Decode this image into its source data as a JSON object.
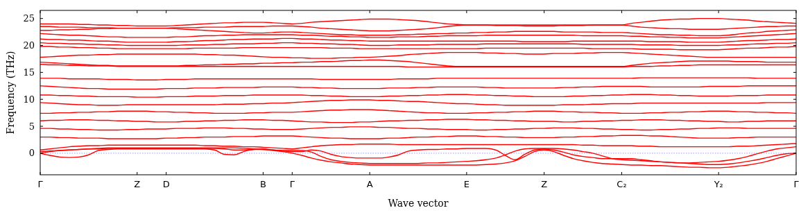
{
  "chart_data": {
    "type": "line",
    "xlabel": "Wave vector",
    "ylabel": "Frequency (THz)",
    "line_style": "solid",
    "categories": [
      "Γ",
      null,
      null,
      null,
      null,
      null,
      null,
      null,
      null,
      null,
      "Z",
      null,
      null,
      "D",
      null,
      null,
      null,
      null,
      null,
      null,
      null,
      null,
      null,
      "B",
      null,
      null,
      "Γ",
      null,
      null,
      null,
      null,
      null,
      null,
      null,
      "A",
      null,
      null,
      null,
      null,
      null,
      null,
      null,
      null,
      null,
      "E",
      null,
      null,
      null,
      null,
      null,
      null,
      null,
      "Z",
      null,
      null,
      null,
      null,
      null,
      null,
      null,
      "C₂",
      null,
      null,
      null,
      null,
      null,
      null,
      null,
      null,
      null,
      "Y₂",
      null,
      null,
      null,
      null,
      null,
      null,
      null,
      "Γ"
    ],
    "ylim": [
      -4,
      26.5
    ],
    "yticks": [
      0,
      5,
      10,
      15,
      20,
      25
    ],
    "ref_lines": [
      {
        "axis": "y",
        "value": 0,
        "color": "#8080ff",
        "line_style": "dotted"
      }
    ],
    "series": [
      {
        "color": "#ff0000",
        "values": [
          0,
          -0.4,
          -0.7,
          -0.8,
          -0.7,
          -0.3,
          0.5,
          0.7,
          0.8,
          0.8,
          0.8,
          0.8,
          0.8,
          0.8,
          0.8,
          0.8,
          0.8,
          0.8,
          0.6,
          -0.2,
          -0.3,
          0.3,
          0.7,
          0.7,
          0.5,
          0.3,
          0,
          -0.4,
          -0.9,
          -1.3,
          -1.6,
          -1.8,
          -2.0,
          -2.1,
          -2.2,
          -2.2,
          -2.2,
          -2.2,
          -2.2,
          -2.2,
          -2.2,
          -2.2,
          -2.2,
          -2.2,
          -2.2,
          -2.2,
          -2.1,
          -2.0,
          -1.8,
          -1.4,
          -0.6,
          0.3,
          0.6,
          0.3,
          -0.4,
          -1.0,
          -1.4,
          -1.7,
          -1.9,
          -2.0,
          -2.1,
          -2.2,
          -2.2,
          -2.3,
          -2.3,
          -2.4,
          -2.5,
          -2.6,
          -2.6,
          -2.7,
          -2.7,
          -2.6,
          -2.4,
          -2.2,
          -1.9,
          -1.5,
          -1.0,
          -0.5,
          0
        ]
      },
      {
        "color": "#ff0000",
        "values": [
          0,
          0.3,
          0.5,
          0.6,
          0.7,
          0.8,
          0.8,
          0.9,
          0.9,
          0.9,
          0.9,
          0.9,
          0.9,
          0.9,
          0.9,
          0.9,
          0.9,
          0.9,
          0.9,
          0.8,
          0.6,
          0.6,
          0.7,
          0.8,
          0.6,
          0.4,
          0.3,
          0.3,
          0.6,
          0.4,
          -0.2,
          -0.6,
          -0.8,
          -0.9,
          -0.9,
          -0.9,
          -0.7,
          -0.3,
          0.4,
          0.6,
          0.7,
          0.7,
          0.8,
          0.8,
          0.9,
          0.9,
          0.9,
          0.6,
          -0.4,
          -1.2,
          -0.2,
          0.6,
          0.8,
          0.6,
          0.2,
          -0.3,
          -0.6,
          -0.8,
          -1.0,
          -1.0,
          -1.0,
          -1.0,
          -1.2,
          -1.4,
          -1.6,
          -1.7,
          -1.8,
          -1.8,
          -1.7,
          -1.6,
          -1.5,
          -1.3,
          -1.0,
          -0.6,
          -0.1,
          0.4,
          0.8,
          1.0,
          1.2
        ]
      },
      {
        "color": "#ff0000",
        "values": [
          0.3,
          0.4,
          0.5,
          0.6,
          0.7,
          0.8,
          0.9,
          1.0,
          1.0,
          1.0,
          1.0,
          1.0,
          1.0,
          1.0,
          1.0,
          1.0,
          1.0,
          1.0,
          1.0,
          1.0,
          1.0,
          0.9,
          0.8,
          0.7,
          0.6,
          0.5,
          0.5,
          0.5,
          0.2,
          -0.6,
          -1.2,
          -1.5,
          -1.7,
          -1.8,
          -1.9,
          -1.9,
          -1.9,
          -1.9,
          -1.9,
          -1.9,
          -1.8,
          -1.8,
          -1.7,
          -1.6,
          -1.5,
          -1.4,
          -1.2,
          -0.9,
          -0.3,
          0.4,
          0.8,
          0.9,
          0.9,
          0.9,
          0.8,
          0.6,
          0.3,
          0.0,
          -0.5,
          -1.0,
          -1.2,
          -1.3,
          -1.4,
          -1.5,
          -1.6,
          -1.7,
          -1.8,
          -1.9,
          -2.0,
          -2.1,
          -2.1,
          -2.0,
          -1.8,
          -1.5,
          -1.2,
          -0.8,
          -0.4,
          -0.1,
          0
        ]
      },
      {
        "color": "#ff0000",
        "values": [
          0.6,
          0.8,
          1.0,
          1.2,
          1.3,
          1.4,
          1.4,
          1.5,
          1.5,
          1.5,
          1.5,
          1.5,
          1.5,
          1.5,
          1.5,
          1.5,
          1.5,
          1.4,
          1.4,
          1.3,
          1.3,
          1.2,
          1.2,
          1.1,
          1.0,
          0.9,
          0.8,
          1.0,
          1.2,
          1.4,
          1.5,
          1.6,
          1.6,
          1.7,
          1.7,
          1.7,
          1.7,
          1.6,
          1.6,
          1.6,
          1.6,
          1.6,
          1.6,
          1.6,
          1.6,
          1.6,
          1.6,
          1.6,
          1.6,
          1.6,
          1.6,
          1.6,
          1.6,
          1.6,
          1.6,
          1.6,
          1.5,
          1.5,
          1.4,
          1.4,
          1.4,
          1.4,
          1.3,
          1.3,
          1.2,
          1.2,
          1.2,
          1.2,
          1.2,
          1.2,
          1.2,
          1.2,
          1.3,
          1.3,
          1.4,
          1.5,
          1.6,
          1.7,
          1.8
        ]
      },
      {
        "color": "#ff0000",
        "values": [
          3.0,
          3.0,
          2.9,
          2.9,
          2.8,
          2.8,
          2.8,
          2.7,
          2.7,
          2.7,
          2.7,
          2.7,
          2.7,
          2.8,
          2.8,
          2.9,
          2.9,
          3.0,
          3.0,
          3.0,
          3.1,
          3.1,
          3.1,
          3.2,
          3.2,
          3.2,
          3.2,
          3.1,
          3.0,
          2.9,
          2.8,
          2.8,
          2.7,
          2.7,
          2.7,
          2.7,
          2.8,
          2.8,
          2.9,
          3.0,
          3.0,
          3.1,
          3.1,
          3.2,
          3.2,
          3.2,
          3.1,
          3.1,
          3.0,
          3.0,
          2.9,
          2.9,
          2.9,
          2.9,
          3.0,
          3.0,
          3.1,
          3.1,
          3.2,
          3.2,
          3.3,
          3.3,
          3.3,
          3.2,
          3.2,
          3.1,
          3.0,
          2.9,
          2.8,
          2.8,
          2.8,
          2.8,
          2.9,
          2.9,
          3.0,
          3.0,
          3.0,
          3.0,
          3.0
        ]
      },
      {
        "color": "#ff0000",
        "values": [
          4.6,
          4.6,
          4.5,
          4.5,
          4.4,
          4.4,
          4.3,
          4.3,
          4.3,
          4.4,
          4.4,
          4.5,
          4.5,
          4.5,
          4.6,
          4.6,
          4.6,
          4.7,
          4.7,
          4.7,
          4.6,
          4.6,
          4.5,
          4.5,
          4.4,
          4.4,
          4.4,
          4.5,
          4.6,
          4.7,
          4.8,
          4.8,
          4.9,
          4.9,
          4.9,
          4.8,
          4.8,
          4.7,
          4.6,
          4.6,
          4.5,
          4.5,
          4.4,
          4.4,
          4.4,
          4.3,
          4.3,
          4.4,
          4.4,
          4.5,
          4.5,
          4.6,
          4.6,
          4.7,
          4.7,
          4.7,
          4.6,
          4.6,
          4.5,
          4.5,
          4.4,
          4.4,
          4.3,
          4.3,
          4.4,
          4.4,
          4.5,
          4.5,
          4.6,
          4.6,
          4.7,
          4.7,
          4.7,
          4.6,
          4.6,
          4.6,
          4.6,
          4.6,
          4.6
        ]
      },
      {
        "color": "#ff0000",
        "values": [
          6.0,
          6.1,
          6.1,
          6.2,
          6.2,
          6.2,
          6.1,
          6.1,
          6.0,
          6.0,
          5.9,
          5.9,
          5.8,
          5.8,
          5.8,
          5.9,
          5.9,
          6.0,
          6.0,
          6.1,
          6.1,
          6.2,
          6.2,
          6.2,
          6.1,
          6.1,
          6.0,
          5.9,
          5.8,
          5.8,
          5.7,
          5.7,
          5.7,
          5.8,
          5.8,
          5.9,
          6.0,
          6.0,
          6.1,
          6.1,
          6.2,
          6.2,
          6.3,
          6.3,
          6.3,
          6.2,
          6.2,
          6.1,
          6.1,
          6.0,
          6.0,
          5.9,
          5.9,
          5.9,
          5.8,
          5.8,
          5.9,
          5.9,
          6.0,
          6.0,
          6.1,
          6.1,
          6.2,
          6.2,
          6.2,
          6.1,
          6.1,
          6.0,
          6.0,
          5.9,
          5.9,
          5.8,
          5.8,
          5.9,
          5.9,
          6.0,
          6.0,
          6.0,
          6.0
        ]
      },
      {
        "color": "#ff0000",
        "values": [
          7.4,
          7.4,
          7.5,
          7.5,
          7.6,
          7.6,
          7.7,
          7.7,
          7.8,
          7.8,
          7.8,
          7.8,
          7.7,
          7.7,
          7.6,
          7.6,
          7.5,
          7.5,
          7.4,
          7.4,
          7.4,
          7.4,
          7.5,
          7.5,
          7.6,
          7.6,
          7.6,
          7.7,
          7.8,
          7.9,
          8.0,
          8.0,
          8.1,
          8.1,
          8.1,
          8.0,
          7.9,
          7.8,
          7.7,
          7.6,
          7.5,
          7.5,
          7.4,
          7.4,
          7.4,
          7.5,
          7.5,
          7.6,
          7.6,
          7.7,
          7.7,
          7.8,
          7.8,
          7.8,
          7.7,
          7.7,
          7.6,
          7.6,
          7.5,
          7.5,
          7.4,
          7.4,
          7.4,
          7.5,
          7.5,
          7.6,
          7.6,
          7.7,
          7.7,
          7.8,
          7.8,
          7.8,
          7.7,
          7.7,
          7.6,
          7.6,
          7.5,
          7.5,
          7.4
        ]
      },
      {
        "color": "#ff0000",
        "values": [
          9.4,
          9.3,
          9.2,
          9.1,
          9.0,
          9.0,
          8.9,
          8.9,
          8.9,
          9.0,
          9.0,
          9.0,
          9.0,
          9.0,
          9.0,
          9.0,
          9.0,
          9.0,
          9.0,
          9.1,
          9.1,
          9.1,
          9.2,
          9.2,
          9.3,
          9.3,
          9.4,
          9.5,
          9.6,
          9.7,
          9.8,
          9.8,
          9.9,
          9.9,
          9.9,
          9.8,
          9.8,
          9.7,
          9.6,
          9.6,
          9.5,
          9.4,
          9.3,
          9.2,
          9.2,
          9.1,
          9.0,
          9.0,
          8.9,
          8.9,
          8.9,
          8.9,
          8.9,
          8.9,
          9.0,
          9.0,
          9.0,
          9.1,
          9.1,
          9.2,
          9.2,
          9.2,
          9.3,
          9.3,
          9.3,
          9.3,
          9.3,
          9.3,
          9.3,
          9.3,
          9.3,
          9.3,
          9.3,
          9.3,
          9.3,
          9.4,
          9.4,
          9.4,
          9.4
        ]
      },
      {
        "color": "#ff0000",
        "values": [
          10.8,
          10.8,
          10.7,
          10.7,
          10.6,
          10.6,
          10.5,
          10.5,
          10.5,
          10.5,
          10.4,
          10.4,
          10.4,
          10.5,
          10.5,
          10.5,
          10.6,
          10.6,
          10.6,
          10.7,
          10.7,
          10.7,
          10.8,
          10.8,
          10.8,
          10.8,
          10.8,
          10.8,
          10.7,
          10.7,
          10.6,
          10.6,
          10.5,
          10.5,
          10.5,
          10.5,
          10.6,
          10.6,
          10.7,
          10.7,
          10.8,
          10.8,
          10.9,
          10.9,
          10.9,
          10.8,
          10.8,
          10.7,
          10.7,
          10.6,
          10.6,
          10.5,
          10.5,
          10.5,
          10.5,
          10.6,
          10.6,
          10.7,
          10.7,
          10.8,
          10.8,
          10.9,
          10.9,
          10.9,
          10.8,
          10.8,
          10.7,
          10.7,
          10.6,
          10.6,
          10.6,
          10.6,
          10.7,
          10.7,
          10.7,
          10.8,
          10.8,
          10.8,
          10.8
        ]
      },
      {
        "color": "#ff0000",
        "values": [
          12.5,
          12.4,
          12.3,
          12.2,
          12.1,
          12.0,
          12.0,
          11.9,
          11.9,
          11.9,
          11.9,
          11.9,
          11.9,
          12.0,
          12.0,
          12.0,
          12.1,
          12.1,
          12.1,
          12.2,
          12.2,
          12.2,
          12.2,
          12.3,
          12.3,
          12.3,
          12.3,
          12.2,
          12.2,
          12.1,
          12.1,
          12.0,
          12.0,
          12.0,
          12.0,
          12.0,
          12.1,
          12.1,
          12.1,
          12.2,
          12.2,
          12.3,
          12.3,
          12.3,
          12.3,
          12.3,
          12.2,
          12.2,
          12.1,
          12.1,
          12.1,
          12.1,
          12.1,
          12.1,
          12.2,
          12.2,
          12.3,
          12.3,
          12.4,
          12.4,
          12.4,
          12.4,
          12.4,
          12.3,
          12.3,
          12.3,
          12.3,
          12.3,
          12.3,
          12.4,
          12.4,
          12.4,
          12.4,
          12.5,
          12.5,
          12.5,
          12.5,
          12.5,
          12.5
        ]
      },
      {
        "color": "#ff0000",
        "values": [
          13.9,
          13.9,
          13.9,
          13.8,
          13.8,
          13.8,
          13.8,
          13.7,
          13.7,
          13.7,
          13.6,
          13.6,
          13.6,
          13.7,
          13.7,
          13.7,
          13.8,
          13.8,
          13.8,
          13.8,
          13.8,
          13.8,
          13.8,
          13.8,
          13.8,
          13.8,
          13.8,
          13.8,
          13.8,
          13.7,
          13.7,
          13.7,
          13.7,
          13.7,
          13.7,
          13.7,
          13.7,
          13.8,
          13.8,
          13.8,
          13.8,
          13.9,
          13.9,
          13.9,
          13.9,
          13.9,
          13.9,
          13.9,
          13.9,
          13.9,
          13.9,
          13.9,
          13.9,
          13.9,
          13.9,
          13.9,
          13.9,
          13.9,
          13.9,
          13.9,
          13.9,
          13.9,
          14.0,
          14.0,
          14.0,
          14.0,
          14.0,
          14.0,
          14.0,
          14.0,
          14.0,
          14.0,
          14.0,
          14.0,
          13.9,
          13.9,
          13.9,
          13.9,
          13.9
        ]
      },
      {
        "color": "#ff0000",
        "values": [
          16.5,
          16.4,
          16.4,
          16.3,
          16.3,
          16.2,
          16.2,
          16.2,
          16.1,
          16.1,
          16.1,
          16.1,
          16.1,
          16.1,
          16.1,
          16.1,
          16.1,
          16.1,
          16.1,
          16.1,
          16.1,
          16.1,
          16.1,
          16.1,
          16.1,
          16.1,
          16.1,
          16.1,
          16.1,
          16.1,
          16.1,
          16.1,
          16.1,
          16.1,
          16.1,
          16.1,
          16.1,
          16.1,
          16.0,
          16.0,
          16.0,
          16.0,
          16.0,
          16.0,
          16.0,
          16.0,
          16.0,
          16.0,
          16.0,
          16.0,
          16.0,
          16.0,
          16.0,
          16.0,
          16.0,
          16.0,
          16.0,
          16.0,
          16.0,
          16.0,
          16.0,
          16.1,
          16.1,
          16.1,
          16.2,
          16.2,
          16.3,
          16.3,
          16.4,
          16.4,
          16.4,
          16.4,
          16.4,
          16.4,
          16.4,
          16.4,
          16.4,
          16.4,
          16.4
        ]
      },
      {
        "color": "#ff0000",
        "values": [
          16.9,
          16.8,
          16.7,
          16.6,
          16.5,
          16.4,
          16.3,
          16.3,
          16.2,
          16.2,
          16.2,
          16.2,
          16.2,
          16.2,
          16.2,
          16.3,
          16.3,
          16.4,
          16.4,
          16.5,
          16.5,
          16.6,
          16.6,
          16.7,
          16.7,
          16.8,
          16.8,
          16.9,
          16.9,
          17.0,
          17.0,
          17.1,
          17.2,
          17.2,
          17.3,
          17.3,
          17.2,
          17.1,
          17.0,
          16.8,
          16.6,
          16.4,
          16.2,
          16.1,
          16.1,
          16.1,
          16.1,
          16.1,
          16.1,
          16.1,
          16.1,
          16.1,
          16.1,
          16.1,
          16.1,
          16.1,
          16.1,
          16.1,
          16.1,
          16.1,
          16.1,
          16.3,
          16.5,
          16.7,
          16.8,
          16.9,
          17.0,
          17.1,
          17.1,
          17.1,
          17.1,
          17.1,
          17.0,
          17.0,
          17.0,
          16.9,
          16.9,
          16.9,
          16.9
        ]
      },
      {
        "color": "#ff0000",
        "values": [
          17.8,
          17.9,
          18.0,
          18.1,
          18.2,
          18.2,
          18.3,
          18.3,
          18.4,
          18.4,
          18.4,
          18.4,
          18.4,
          18.4,
          18.4,
          18.4,
          18.4,
          18.3,
          18.3,
          18.2,
          18.2,
          18.1,
          18.0,
          17.9,
          17.8,
          17.8,
          17.7,
          17.7,
          17.6,
          17.6,
          17.6,
          17.7,
          17.7,
          17.8,
          17.8,
          17.9,
          18.0,
          18.1,
          18.3,
          18.4,
          18.5,
          18.6,
          18.7,
          18.7,
          18.7,
          18.7,
          18.6,
          18.6,
          18.5,
          18.5,
          18.4,
          18.4,
          18.4,
          18.5,
          18.5,
          18.5,
          18.6,
          18.6,
          18.7,
          18.7,
          18.7,
          18.6,
          18.5,
          18.4,
          18.3,
          18.2,
          18.1,
          18.0,
          17.9,
          17.8,
          17.8,
          17.8,
          17.8,
          17.8,
          17.8,
          17.8,
          17.8,
          17.8,
          17.8
        ]
      },
      {
        "color": "#ff0000",
        "values": [
          19.8,
          19.8,
          19.7,
          19.7,
          19.6,
          19.6,
          19.5,
          19.5,
          19.4,
          19.4,
          19.4,
          19.4,
          19.4,
          19.4,
          19.4,
          19.4,
          19.5,
          19.5,
          19.5,
          19.5,
          19.5,
          19.6,
          19.6,
          19.6,
          19.6,
          19.6,
          19.6,
          19.6,
          19.6,
          19.6,
          19.5,
          19.5,
          19.5,
          19.4,
          19.4,
          19.4,
          19.4,
          19.4,
          19.4,
          19.4,
          19.4,
          19.4,
          19.4,
          19.4,
          19.4,
          19.4,
          19.5,
          19.5,
          19.5,
          19.5,
          19.5,
          19.5,
          19.5,
          19.5,
          19.5,
          19.5,
          19.5,
          19.4,
          19.4,
          19.4,
          19.4,
          19.4,
          19.3,
          19.3,
          19.3,
          19.3,
          19.2,
          19.2,
          19.2,
          19.2,
          19.2,
          19.3,
          19.4,
          19.5,
          19.5,
          19.6,
          19.7,
          19.7,
          19.8
        ]
      },
      {
        "color": "#ff0000",
        "values": [
          20.5,
          20.4,
          20.4,
          20.3,
          20.3,
          20.2,
          20.2,
          20.1,
          20.1,
          20.0,
          20.0,
          20.0,
          20.0,
          20.0,
          20.0,
          20.1,
          20.1,
          20.1,
          20.2,
          20.2,
          20.3,
          20.3,
          20.3,
          20.4,
          20.4,
          20.5,
          20.5,
          20.4,
          20.4,
          20.3,
          20.3,
          20.2,
          20.2,
          20.1,
          20.0,
          20.0,
          20.0,
          20.1,
          20.1,
          20.1,
          20.1,
          20.2,
          20.2,
          20.2,
          20.2,
          20.2,
          20.3,
          20.3,
          20.3,
          20.3,
          20.3,
          20.3,
          20.3,
          20.3,
          20.3,
          20.3,
          20.2,
          20.2,
          20.2,
          20.2,
          20.2,
          20.2,
          20.1,
          20.1,
          20.1,
          20.1,
          20.0,
          20.0,
          20.0,
          20.0,
          20.0,
          20.1,
          20.1,
          20.2,
          20.3,
          20.3,
          20.4,
          20.4,
          20.5
        ]
      },
      {
        "color": "#ff0000",
        "values": [
          21.2,
          21.1,
          21.1,
          21.0,
          21.0,
          20.9,
          20.8,
          20.8,
          20.7,
          20.6,
          20.6,
          20.6,
          20.6,
          20.6,
          20.7,
          20.7,
          20.8,
          20.9,
          20.9,
          21.0,
          21.1,
          21.1,
          21.2,
          21.2,
          21.2,
          21.3,
          21.3,
          21.2,
          21.2,
          21.1,
          21.0,
          21.0,
          20.9,
          20.9,
          20.8,
          20.8,
          20.8,
          20.8,
          20.8,
          20.8,
          20.8,
          20.8,
          20.8,
          20.8,
          20.8,
          20.8,
          20.8,
          20.8,
          20.8,
          20.8,
          20.7,
          20.7,
          20.7,
          20.7,
          20.7,
          20.8,
          20.8,
          20.8,
          20.8,
          20.8,
          20.8,
          20.8,
          20.8,
          20.7,
          20.7,
          20.7,
          20.7,
          20.6,
          20.6,
          20.6,
          20.6,
          20.7,
          20.8,
          20.9,
          20.9,
          21.0,
          21.1,
          21.1,
          21.2
        ]
      },
      {
        "color": "#ff0000",
        "values": [
          22.2,
          22.1,
          22.0,
          21.9,
          21.9,
          21.8,
          21.7,
          21.6,
          21.6,
          21.5,
          21.5,
          21.5,
          21.5,
          21.5,
          21.6,
          21.6,
          21.7,
          21.8,
          21.8,
          21.9,
          21.9,
          22.0,
          22.0,
          22.0,
          22.0,
          22.0,
          22.0,
          21.9,
          21.9,
          21.8,
          21.7,
          21.7,
          21.6,
          21.6,
          21.5,
          21.5,
          21.5,
          21.6,
          21.6,
          21.6,
          21.7,
          21.7,
          21.8,
          21.8,
          21.8,
          21.8,
          21.9,
          21.9,
          21.9,
          21.9,
          21.9,
          21.9,
          21.9,
          21.9,
          21.9,
          21.9,
          21.8,
          21.8,
          21.8,
          21.8,
          21.8,
          21.7,
          21.7,
          21.6,
          21.6,
          21.5,
          21.5,
          21.4,
          21.4,
          21.4,
          21.4,
          21.5,
          21.6,
          21.7,
          21.8,
          21.9,
          22.0,
          22.1,
          22.2
        ]
      },
      {
        "color": "#ff0000",
        "values": [
          22.8,
          22.8,
          22.9,
          22.9,
          23.0,
          23.0,
          23.1,
          23.1,
          23.2,
          23.2,
          23.2,
          23.2,
          23.2,
          23.2,
          23.1,
          23.0,
          22.9,
          22.8,
          22.7,
          22.6,
          22.5,
          22.4,
          22.3,
          22.3,
          22.4,
          22.5,
          22.5,
          22.4,
          22.3,
          22.2,
          22.1,
          22.0,
          22.0,
          21.9,
          21.9,
          21.9,
          21.9,
          22.0,
          22.0,
          22.1,
          22.1,
          22.2,
          22.2,
          22.3,
          22.3,
          22.4,
          22.4,
          22.5,
          22.5,
          22.6,
          22.6,
          22.6,
          22.6,
          22.6,
          22.5,
          22.5,
          22.5,
          22.5,
          22.4,
          22.4,
          22.4,
          22.3,
          22.2,
          22.1,
          22.0,
          22.0,
          21.9,
          21.9,
          21.8,
          21.8,
          21.8,
          21.9,
          22.1,
          22.3,
          22.4,
          22.6,
          22.7,
          22.8,
          22.9
        ]
      },
      {
        "color": "#ff0000",
        "values": [
          23.5,
          23.5,
          23.4,
          23.4,
          23.4,
          23.3,
          23.3,
          23.3,
          23.2,
          23.2,
          23.2,
          23.2,
          23.2,
          23.2,
          23.3,
          23.3,
          23.3,
          23.4,
          23.4,
          23.4,
          23.5,
          23.5,
          23.5,
          23.5,
          23.6,
          23.6,
          23.6,
          23.5,
          23.4,
          23.2,
          23.1,
          23.0,
          22.9,
          22.8,
          22.7,
          22.7,
          22.7,
          22.8,
          22.9,
          23.0,
          23.1,
          23.3,
          23.5,
          23.7,
          23.8,
          23.8,
          23.8,
          23.7,
          23.7,
          23.7,
          23.6,
          23.6,
          23.6,
          23.6,
          23.7,
          23.7,
          23.7,
          23.8,
          23.8,
          23.8,
          23.8,
          23.6,
          23.4,
          23.3,
          23.2,
          23.1,
          23.1,
          23.0,
          23.0,
          23.0,
          23.0,
          23.1,
          23.2,
          23.3,
          23.4,
          23.5,
          23.5,
          23.6,
          23.6
        ]
      },
      {
        "color": "#ff0000",
        "values": [
          24.0,
          24.0,
          24.0,
          24.0,
          23.9,
          23.9,
          23.8,
          23.8,
          23.7,
          23.7,
          23.6,
          23.6,
          23.6,
          23.6,
          23.7,
          23.8,
          23.9,
          24.0,
          24.1,
          24.2,
          24.2,
          24.3,
          24.3,
          24.3,
          24.2,
          24.1,
          24.0,
          24.1,
          24.3,
          24.4,
          24.5,
          24.6,
          24.7,
          24.8,
          24.9,
          24.9,
          24.9,
          24.8,
          24.7,
          24.6,
          24.4,
          24.2,
          24.0,
          23.9,
          23.8,
          23.8,
          23.8,
          23.8,
          23.8,
          23.8,
          23.8,
          23.8,
          23.8,
          23.8,
          23.8,
          23.8,
          23.8,
          23.8,
          23.8,
          23.8,
          23.8,
          24.1,
          24.3,
          24.5,
          24.7,
          24.8,
          24.9,
          24.9,
          25.0,
          25.0,
          25.0,
          24.9,
          24.8,
          24.7,
          24.5,
          24.4,
          24.3,
          24.2,
          24.1
        ]
      }
    ]
  }
}
